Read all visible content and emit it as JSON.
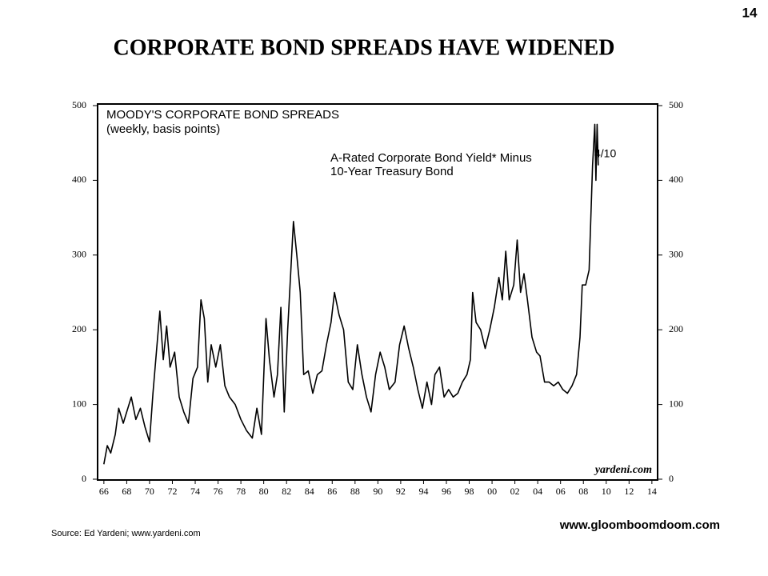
{
  "page_number": "14",
  "title": "CORPORATE  BOND  SPREADS  HAVE  WIDENED",
  "source": "Source: Ed Yardeni; www.yardeni.com",
  "website": "www.gloomboomdoom.com",
  "chart_data": {
    "type": "line",
    "title": "MOODY'S CORPORATE BOND SPREADS",
    "subtitle": "(weekly, basis points)",
    "annotations": [
      "A-Rated Corporate Bond Yield* Minus",
      "10-Year Treasury Bond",
      "4/10",
      "yardeni.com"
    ],
    "color": "#000000",
    "x": [
      1966.0,
      1966.3,
      1966.6,
      1967.0,
      1967.3,
      1967.7,
      1968.0,
      1968.4,
      1968.8,
      1969.2,
      1969.6,
      1970.0,
      1970.3,
      1970.6,
      1970.9,
      1971.2,
      1971.5,
      1971.8,
      1972.2,
      1972.6,
      1973.0,
      1973.4,
      1973.8,
      1974.2,
      1974.5,
      1974.8,
      1975.1,
      1975.4,
      1975.8,
      1976.2,
      1976.6,
      1977.0,
      1977.5,
      1978.0,
      1978.5,
      1979.0,
      1979.4,
      1979.8,
      1980.2,
      1980.5,
      1980.9,
      1981.2,
      1981.5,
      1981.8,
      1982.1,
      1982.6,
      1982.9,
      1983.2,
      1983.5,
      1983.9,
      1984.3,
      1984.7,
      1985.1,
      1985.5,
      1985.9,
      1986.2,
      1986.6,
      1987.0,
      1987.4,
      1987.8,
      1988.2,
      1988.6,
      1989.0,
      1989.4,
      1989.8,
      1990.2,
      1990.6,
      1991.0,
      1991.5,
      1991.9,
      1992.3,
      1992.7,
      1993.1,
      1993.5,
      1993.9,
      1994.3,
      1994.7,
      1995.0,
      1995.4,
      1995.8,
      1996.2,
      1996.6,
      1997.0,
      1997.4,
      1997.8,
      1998.1,
      1998.3,
      1998.6,
      1999.0,
      1999.4,
      1999.8,
      2000.2,
      2000.6,
      2000.9,
      2001.2,
      2001.5,
      2001.9,
      2002.2,
      2002.5,
      2002.8,
      2003.1,
      2003.5,
      2003.9,
      2004.2,
      2004.6,
      2005.0,
      2005.4,
      2005.8,
      2006.2,
      2006.6,
      2007.0,
      2007.4,
      2007.7,
      2007.9,
      2008.2,
      2008.5,
      2008.8,
      2009.0,
      2009.1,
      2009.2,
      2009.3
    ],
    "values": [
      20,
      45,
      35,
      60,
      95,
      75,
      90,
      110,
      80,
      95,
      70,
      50,
      115,
      170,
      225,
      160,
      205,
      150,
      170,
      110,
      90,
      75,
      135,
      150,
      240,
      215,
      130,
      180,
      150,
      180,
      125,
      110,
      100,
      80,
      65,
      55,
      95,
      60,
      215,
      160,
      110,
      140,
      230,
      90,
      200,
      345,
      300,
      250,
      140,
      145,
      115,
      140,
      145,
      180,
      210,
      250,
      220,
      200,
      130,
      120,
      180,
      140,
      110,
      90,
      140,
      170,
      150,
      120,
      130,
      180,
      205,
      175,
      150,
      120,
      95,
      130,
      100,
      140,
      150,
      110,
      120,
      110,
      115,
      130,
      140,
      160,
      250,
      210,
      200,
      175,
      200,
      230,
      270,
      240,
      305,
      240,
      260,
      320,
      250,
      275,
      240,
      190,
      170,
      165,
      130,
      130,
      125,
      130,
      120,
      115,
      125,
      140,
      190,
      260,
      260,
      280,
      420,
      475,
      400,
      475,
      420
    ],
    "xlim": [
      1965.45,
      2014.5
    ],
    "xticks": [
      {
        "value": 1966,
        "label": "66"
      },
      {
        "value": 1968,
        "label": "68"
      },
      {
        "value": 1970,
        "label": "70"
      },
      {
        "value": 1972,
        "label": "72"
      },
      {
        "value": 1974,
        "label": "74"
      },
      {
        "value": 1976,
        "label": "76"
      },
      {
        "value": 1978,
        "label": "78"
      },
      {
        "value": 1980,
        "label": "80"
      },
      {
        "value": 1982,
        "label": "82"
      },
      {
        "value": 1984,
        "label": "84"
      },
      {
        "value": 1986,
        "label": "86"
      },
      {
        "value": 1988,
        "label": "88"
      },
      {
        "value": 1990,
        "label": "90"
      },
      {
        "value": 1992,
        "label": "92"
      },
      {
        "value": 1994,
        "label": "94"
      },
      {
        "value": 1996,
        "label": "96"
      },
      {
        "value": 1998,
        "label": "98"
      },
      {
        "value": 2000,
        "label": "00"
      },
      {
        "value": 2002,
        "label": "02"
      },
      {
        "value": 2004,
        "label": "04"
      },
      {
        "value": 2006,
        "label": "06"
      },
      {
        "value": 2008,
        "label": "08"
      },
      {
        "value": 2010,
        "label": "10"
      },
      {
        "value": 2012,
        "label": "12"
      },
      {
        "value": 2014,
        "label": "14"
      }
    ],
    "ylim": [
      0,
      500
    ],
    "yticks": [
      0,
      100,
      200,
      300,
      400,
      500
    ],
    "y2lim": [
      0,
      500
    ],
    "y2ticks": [
      0,
      100,
      200,
      300,
      400,
      500
    ],
    "grid": false
  }
}
